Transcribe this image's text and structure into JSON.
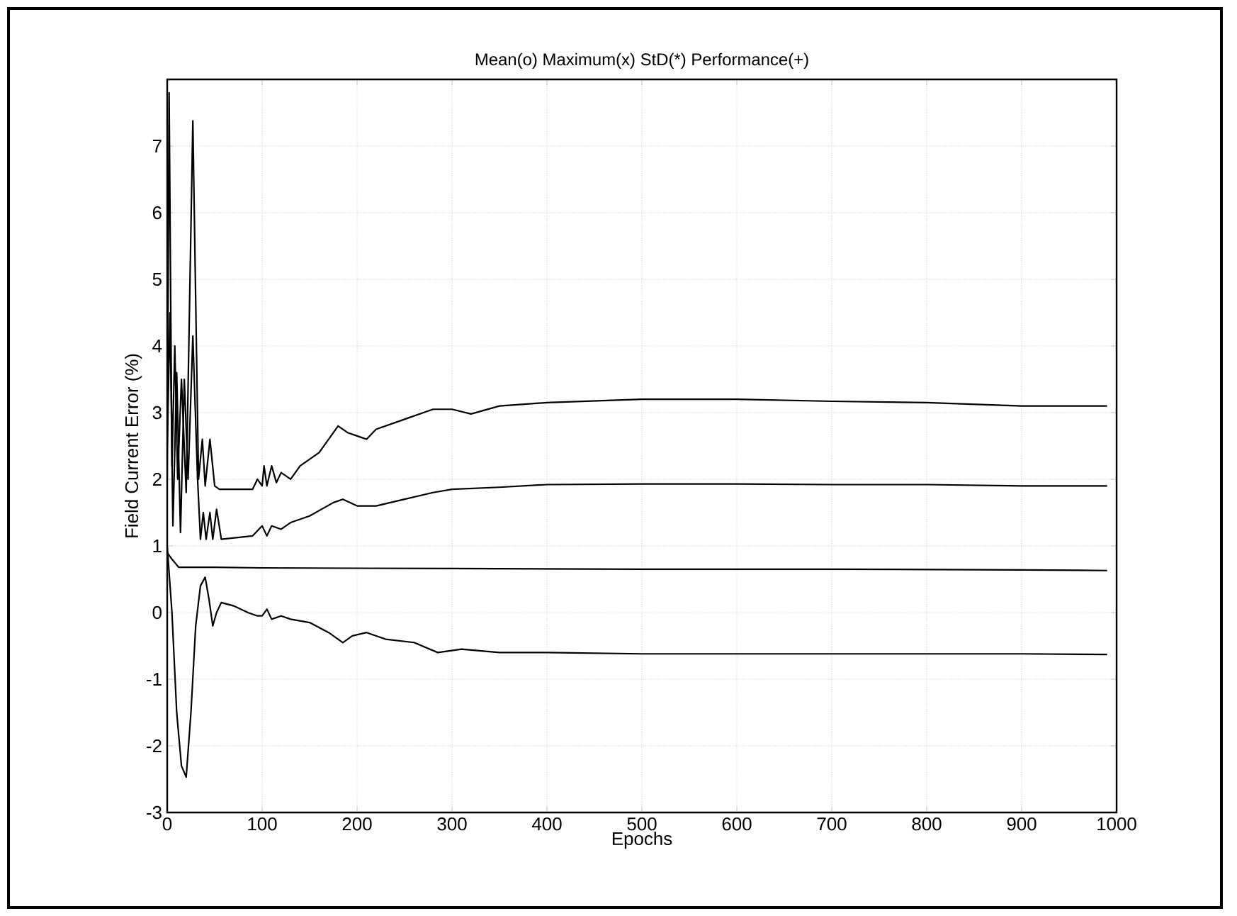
{
  "chart_data": {
    "type": "line",
    "title": "Mean(o)  Maximum(x) StD(*) Performance(+)",
    "xlabel": "Epochs",
    "ylabel": "Field Current Error (%)",
    "xlim": [
      0,
      1000
    ],
    "ylim": [
      -3,
      8
    ],
    "xticks": [
      0,
      100,
      200,
      300,
      400,
      500,
      600,
      700,
      800,
      900,
      1000
    ],
    "yticks": [
      -3,
      -2,
      -1,
      0,
      1,
      2,
      3,
      4,
      5,
      6,
      7
    ],
    "grid": true,
    "line_style": "solid",
    "series": [
      {
        "color": "#000000",
        "x": [
          0,
          2,
          5,
          8,
          11,
          15,
          20,
          27,
          33,
          37,
          40,
          45,
          50,
          55,
          90,
          95,
          100,
          102,
          105,
          110,
          115,
          120,
          130,
          140,
          160,
          180,
          190,
          200,
          210,
          220,
          250,
          280,
          300,
          320,
          350,
          400,
          500,
          600,
          700,
          800,
          900,
          990
        ],
        "values": [
          2.0,
          7.8,
          2.2,
          4.0,
          2.0,
          3.5,
          1.8,
          7.38,
          2.0,
          2.6,
          1.9,
          2.6,
          1.9,
          1.85,
          1.85,
          2.0,
          1.9,
          2.2,
          1.9,
          2.2,
          1.95,
          2.1,
          2.0,
          2.2,
          2.4,
          2.8,
          2.7,
          2.65,
          2.6,
          2.75,
          2.9,
          3.05,
          3.05,
          2.98,
          3.1,
          3.15,
          3.2,
          3.2,
          3.17,
          3.15,
          3.1,
          3.1
        ]
      },
      {
        "color": "#000000",
        "x": [
          0,
          3,
          6,
          10,
          14,
          18,
          22,
          27,
          32,
          35,
          38,
          41,
          45,
          48,
          52,
          57,
          90,
          100,
          105,
          110,
          120,
          130,
          150,
          175,
          185,
          200,
          220,
          250,
          280,
          300,
          350,
          400,
          500,
          600,
          700,
          800,
          900,
          990
        ],
        "values": [
          2.5,
          4.5,
          1.3,
          3.6,
          1.2,
          3.5,
          2.0,
          4.15,
          2.0,
          1.1,
          1.5,
          1.1,
          1.5,
          1.1,
          1.55,
          1.1,
          1.15,
          1.3,
          1.15,
          1.3,
          1.25,
          1.35,
          1.45,
          1.65,
          1.7,
          1.6,
          1.6,
          1.7,
          1.8,
          1.85,
          1.88,
          1.92,
          1.93,
          1.93,
          1.92,
          1.92,
          1.9,
          1.9
        ]
      },
      {
        "color": "#000000",
        "x": [
          0,
          5,
          12,
          20,
          50,
          100,
          300,
          500,
          700,
          900,
          990
        ],
        "values": [
          0.9,
          0.8,
          0.68,
          0.68,
          0.68,
          0.67,
          0.66,
          0.65,
          0.65,
          0.64,
          0.63
        ]
      },
      {
        "color": "#000000",
        "x": [
          0,
          5,
          10,
          15,
          20,
          25,
          30,
          35,
          40,
          44,
          48,
          52,
          57,
          70,
          85,
          95,
          100,
          105,
          110,
          120,
          130,
          150,
          170,
          185,
          195,
          210,
          230,
          260,
          285,
          310,
          350,
          400,
          500,
          700,
          900,
          990
        ],
        "values": [
          1.0,
          0.0,
          -1.5,
          -2.3,
          -2.47,
          -1.5,
          -0.2,
          0.4,
          0.53,
          0.2,
          -0.2,
          0.0,
          0.15,
          0.1,
          0.0,
          -0.05,
          -0.05,
          0.05,
          -0.1,
          -0.05,
          -0.1,
          -0.15,
          -0.3,
          -0.45,
          -0.35,
          -0.3,
          -0.4,
          -0.45,
          -0.6,
          -0.55,
          -0.6,
          -0.6,
          -0.62,
          -0.62,
          -0.62,
          -0.63
        ]
      }
    ]
  }
}
